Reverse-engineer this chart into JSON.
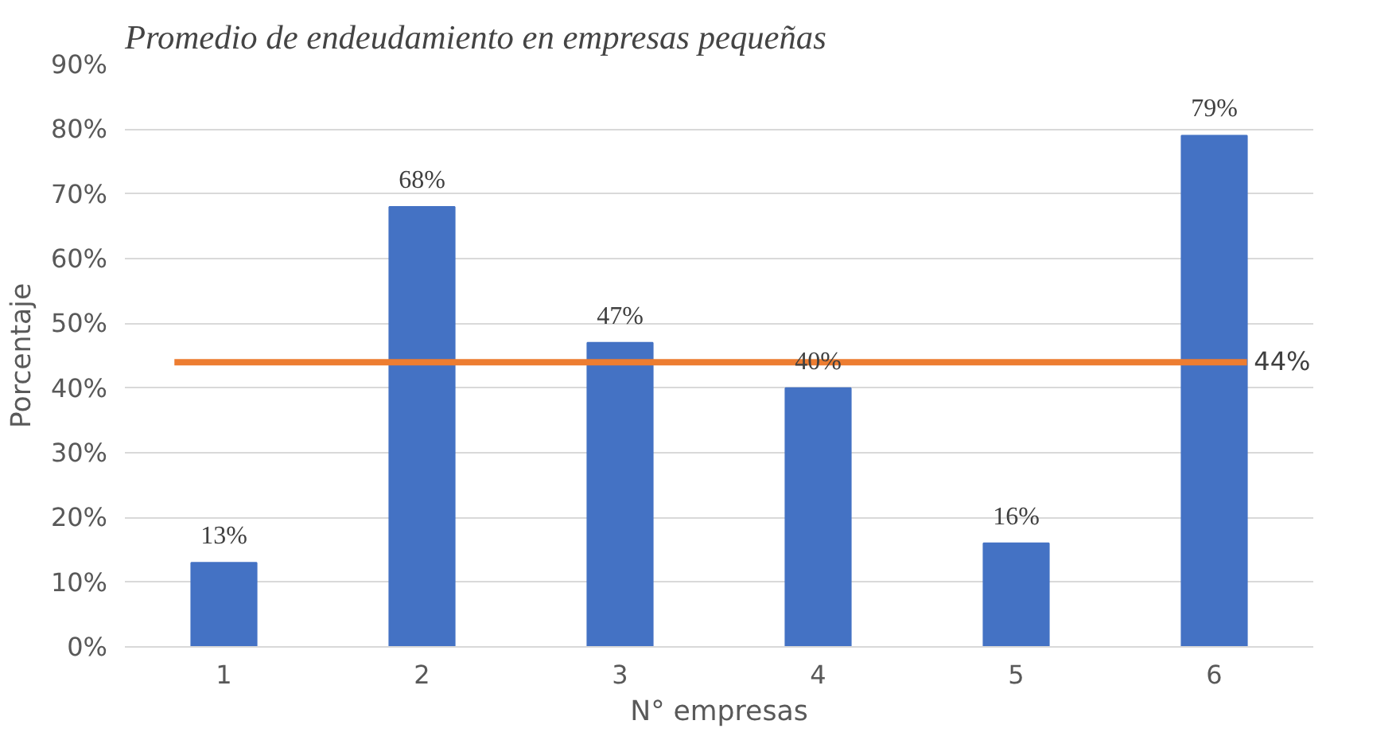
{
  "chart_data": {
    "type": "bar",
    "title": "Promedio de endeudamiento en empresas pequeñas",
    "xlabel": "N° empresas",
    "ylabel": "Porcentaje",
    "categories": [
      "1",
      "2",
      "3",
      "4",
      "5",
      "6"
    ],
    "values": [
      13,
      68,
      47,
      40,
      16,
      79
    ],
    "color": "#4472c4",
    "value_labels": [
      "13%",
      "68%",
      "47%",
      "40%",
      "16%",
      "79%"
    ],
    "ylim": [
      0,
      90
    ],
    "yticks": [
      {
        "value": 0,
        "label": "0%"
      },
      {
        "value": 10,
        "label": "10%"
      },
      {
        "value": 20,
        "label": "20%"
      },
      {
        "value": 30,
        "label": "30%"
      },
      {
        "value": 40,
        "label": "40%"
      },
      {
        "value": 50,
        "label": "50%"
      },
      {
        "value": 60,
        "label": "60%"
      },
      {
        "value": 70,
        "label": "70%"
      },
      {
        "value": 80,
        "label": "80%"
      },
      {
        "value": 90,
        "label": "90%"
      }
    ],
    "ref_lines": [
      {
        "axis": "y",
        "value": 44,
        "label": "44%",
        "color": "#ed7d31"
      }
    ],
    "grid": "y"
  }
}
